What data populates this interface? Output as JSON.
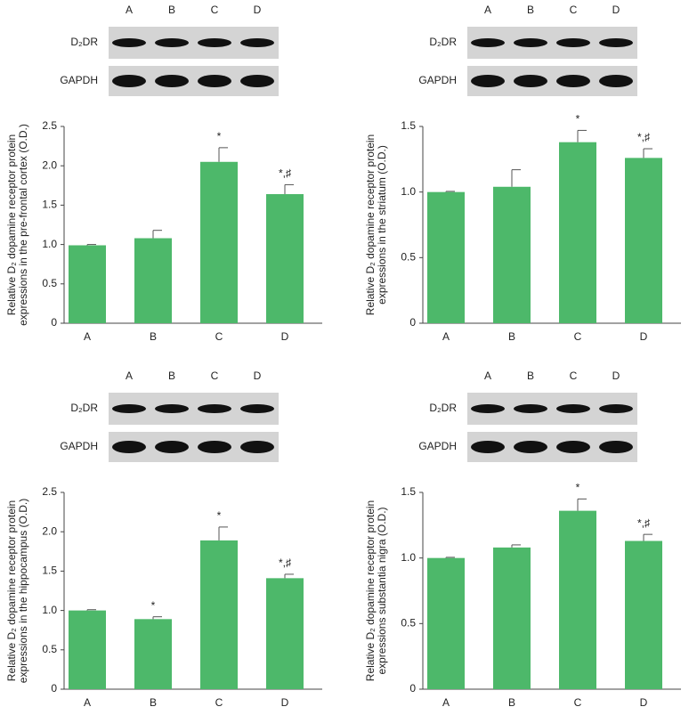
{
  "chart_data": [
    {
      "type": "bar",
      "blot_lanes": [
        "A",
        "B",
        "C",
        "D"
      ],
      "blot_rows": [
        "D₂DR",
        "GAPDH"
      ],
      "ylabel": [
        "Relative D₂ dopamine receptor protein",
        "expressions in the pre-frontal cortex (O.D.)"
      ],
      "categories": [
        "A",
        "B",
        "C",
        "D"
      ],
      "values": [
        0.99,
        1.08,
        2.05,
        1.64
      ],
      "errors": [
        0.01,
        0.1,
        0.18,
        0.12
      ],
      "annotations": [
        null,
        null,
        "*",
        "*,♯"
      ],
      "color": "#4db86a",
      "ylim": [
        0,
        2.5
      ],
      "yticks": [
        0,
        0.5,
        {
          "value": 1,
          "label": "1.0"
        },
        1.5,
        {
          "value": 2,
          "label": "2.0"
        },
        2.5
      ]
    },
    {
      "type": "bar",
      "blot_lanes": [
        "A",
        "B",
        "C",
        "D"
      ],
      "blot_rows": [
        "D₂DR",
        "GAPDH"
      ],
      "ylabel": [
        "Relative D₂ dopamine receptor protein",
        "expressions in the striatum (O.D.)"
      ],
      "categories": [
        "A",
        "B",
        "C",
        "D"
      ],
      "values": [
        1.0,
        1.04,
        1.38,
        1.26
      ],
      "errors": [
        0.005,
        0.13,
        0.09,
        0.07
      ],
      "annotations": [
        null,
        null,
        "*",
        "*,♯"
      ],
      "color": "#4db86a",
      "ylim": [
        0,
        1.5
      ],
      "yticks": [
        0,
        0.5,
        {
          "value": 1,
          "label": "1.0"
        },
        1.5
      ]
    },
    {
      "type": "bar",
      "blot_lanes": [
        "A",
        "B",
        "C",
        "D"
      ],
      "blot_rows": [
        "D₂DR",
        "GAPDH"
      ],
      "ylabel": [
        "Relative D₂ dopamine receptor protein",
        "expressions in the hippocampus (O.D.)"
      ],
      "categories": [
        "A",
        "B",
        "C",
        "D"
      ],
      "values": [
        1.0,
        0.89,
        1.89,
        1.41
      ],
      "errors": [
        0.01,
        0.03,
        0.17,
        0.05
      ],
      "annotations": [
        null,
        "*",
        "*",
        "*,♯"
      ],
      "color": "#4db86a",
      "ylim": [
        0,
        2.5
      ],
      "yticks": [
        0,
        0.5,
        {
          "value": 1,
          "label": "1.0"
        },
        1.5,
        {
          "value": 2,
          "label": "2.0"
        },
        2.5
      ]
    },
    {
      "type": "bar",
      "blot_lanes": [
        "A",
        "B",
        "C",
        "D"
      ],
      "blot_rows": [
        "D₂DR",
        "GAPDH"
      ],
      "ylabel": [
        "Relative D₂ dopamine receptor protein",
        "expressions substantia nigra (O.D.)"
      ],
      "categories": [
        "A",
        "B",
        "C",
        "D"
      ],
      "values": [
        1.0,
        1.08,
        1.36,
        1.13
      ],
      "errors": [
        0.005,
        0.02,
        0.09,
        0.05
      ],
      "annotations": [
        null,
        null,
        "*",
        "*,♯"
      ],
      "color": "#4db86a",
      "ylim": [
        0,
        1.5
      ],
      "yticks": [
        0,
        0.5,
        {
          "value": 1,
          "label": "1.0"
        },
        1.5
      ]
    }
  ]
}
